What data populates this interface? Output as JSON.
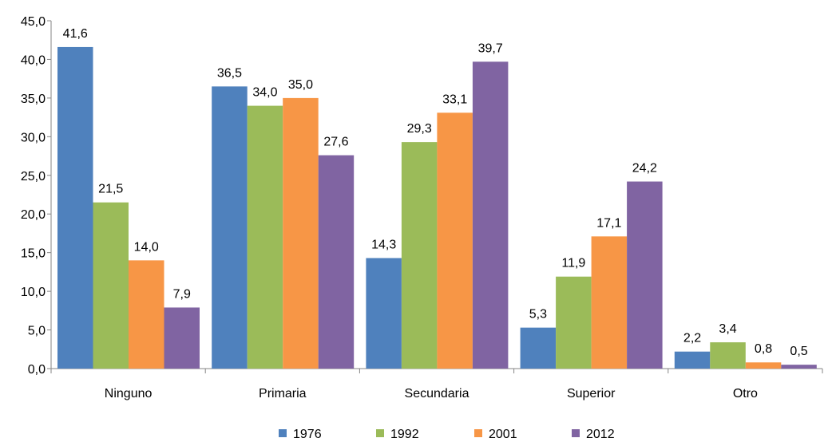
{
  "chart_data": {
    "type": "bar",
    "categories": [
      "Ninguno",
      "Primaria",
      "Secundaria",
      "Superior",
      "Otro"
    ],
    "series": [
      {
        "name": "1976",
        "color": "#4F81BD",
        "values": [
          41.6,
          36.5,
          14.3,
          5.3,
          2.2
        ],
        "labels": [
          "41,6",
          "36,5",
          "14,3",
          "5,3",
          "2,2"
        ]
      },
      {
        "name": "1992",
        "color": "#9BBB59",
        "values": [
          21.5,
          34.0,
          29.3,
          11.9,
          3.4
        ],
        "labels": [
          "21,5",
          "34,0",
          "29,3",
          "11,9",
          "3,4"
        ]
      },
      {
        "name": "2001",
        "color": "#F79646",
        "values": [
          14.0,
          35.0,
          33.1,
          17.1,
          0.8
        ],
        "labels": [
          "14,0",
          "35,0",
          "33,1",
          "17,1",
          "0,8"
        ]
      },
      {
        "name": "2012",
        "color": "#8064A2",
        "values": [
          7.9,
          27.6,
          39.7,
          24.2,
          0.5
        ],
        "labels": [
          "7,9",
          "27,6",
          "39,7",
          "24,2",
          "0,5"
        ]
      }
    ],
    "ylim": [
      0,
      45
    ],
    "yticks": [
      0,
      5,
      10,
      15,
      20,
      25,
      30,
      35,
      40,
      45
    ],
    "ytick_labels": [
      "0,0",
      "5,0",
      "10,0",
      "15,0",
      "20,0",
      "25,0",
      "30,0",
      "35,0",
      "40,0",
      "45,0"
    ],
    "grid": false,
    "legend": "bottom"
  }
}
